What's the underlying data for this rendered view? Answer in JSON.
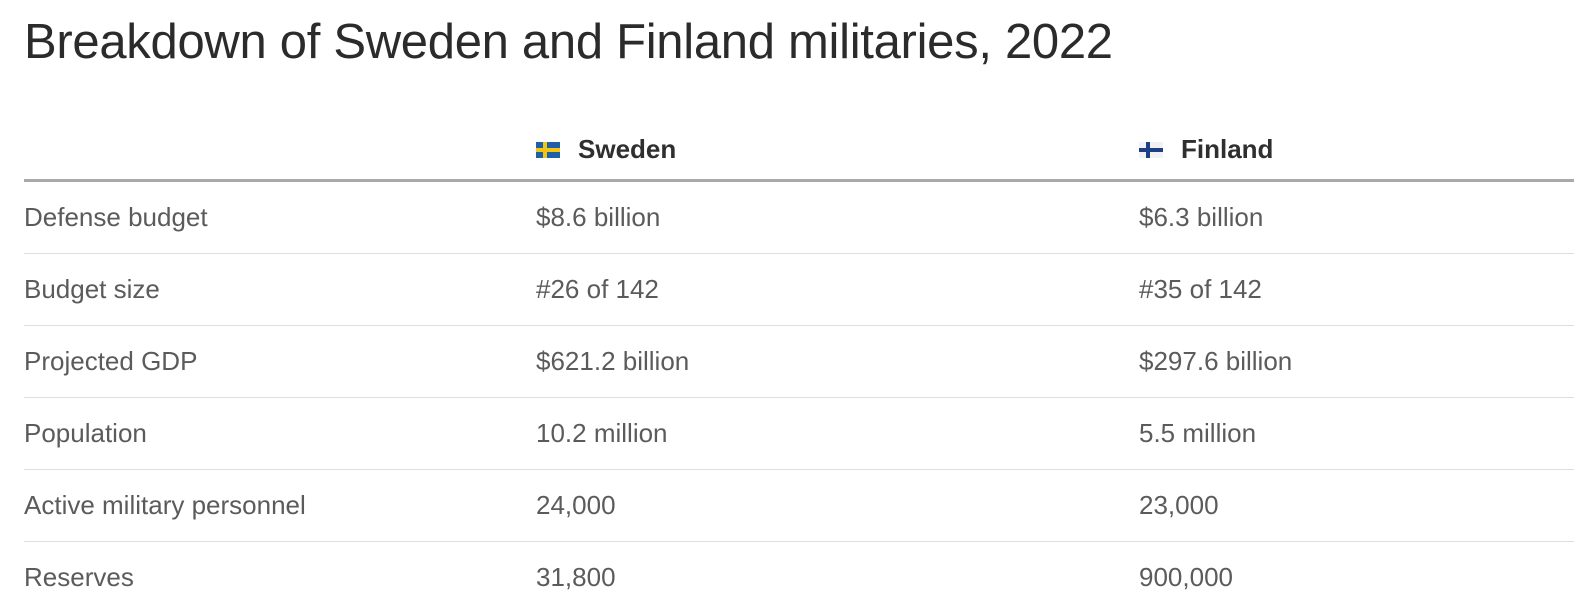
{
  "title": "Breakdown of Sweden and Finland militaries, 2022",
  "columns": [
    {
      "label": "Sweden",
      "flag": "sweden-flag-icon"
    },
    {
      "label": "Finland",
      "flag": "finland-flag-icon"
    }
  ],
  "rows": [
    {
      "label": "Defense budget",
      "sweden": "$8.6 billion",
      "finland": "$6.3 billion"
    },
    {
      "label": "Budget size",
      "sweden": "#26 of 142",
      "finland": "#35 of 142"
    },
    {
      "label": "Projected GDP",
      "sweden": "$621.2 billion",
      "finland": "$297.6 billion"
    },
    {
      "label": "Population",
      "sweden": "10.2 million",
      "finland": "5.5 million"
    },
    {
      "label": "Active military personnel",
      "sweden": "24,000",
      "finland": "23,000"
    },
    {
      "label": "Reserves",
      "sweden": "31,800",
      "finland": "900,000"
    }
  ],
  "colors": {
    "sweden_blue": "#1f5fa8",
    "sweden_yellow": "#f3c512",
    "finland_blue": "#1d3f87",
    "header_rule": "#a9a9a9",
    "row_rule": "#dddddd"
  }
}
